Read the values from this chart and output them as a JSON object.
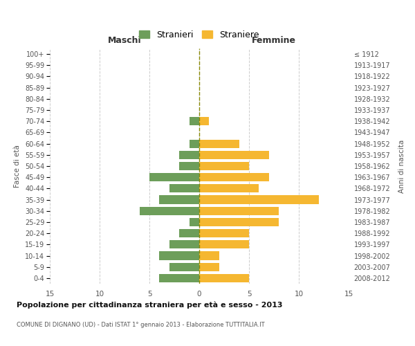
{
  "age_groups": [
    "0-4",
    "5-9",
    "10-14",
    "15-19",
    "20-24",
    "25-29",
    "30-34",
    "35-39",
    "40-44",
    "45-49",
    "50-54",
    "55-59",
    "60-64",
    "65-69",
    "70-74",
    "75-79",
    "80-84",
    "85-89",
    "90-94",
    "95-99",
    "100+"
  ],
  "birth_years": [
    "2008-2012",
    "2003-2007",
    "1998-2002",
    "1993-1997",
    "1988-1992",
    "1983-1987",
    "1978-1982",
    "1973-1977",
    "1968-1972",
    "1963-1967",
    "1958-1962",
    "1953-1957",
    "1948-1952",
    "1943-1947",
    "1938-1942",
    "1933-1937",
    "1928-1932",
    "1923-1927",
    "1918-1922",
    "1913-1917",
    "≤ 1912"
  ],
  "males": [
    4,
    3,
    4,
    3,
    2,
    1,
    6,
    4,
    3,
    5,
    2,
    2,
    1,
    0,
    1,
    0,
    0,
    0,
    0,
    0,
    0
  ],
  "females": [
    5,
    2,
    2,
    5,
    5,
    8,
    8,
    12,
    6,
    7,
    5,
    7,
    4,
    0,
    1,
    0,
    0,
    0,
    0,
    0,
    0
  ],
  "male_color": "#6d9e5a",
  "female_color": "#f5b731",
  "title": "Popolazione per cittadinanza straniera per età e sesso - 2013",
  "subtitle": "COMUNE DI DIGNANO (UD) - Dati ISTAT 1° gennaio 2013 - Elaborazione TUTTITALIA.IT",
  "xlabel_left": "Maschi",
  "xlabel_right": "Femmine",
  "ylabel_left": "Fasce di età",
  "ylabel_right": "Anni di nascita",
  "legend_male": "Stranieri",
  "legend_female": "Straniere",
  "xlim": 15,
  "bg_color": "#ffffff",
  "grid_color": "#cccccc",
  "bar_height": 0.75
}
